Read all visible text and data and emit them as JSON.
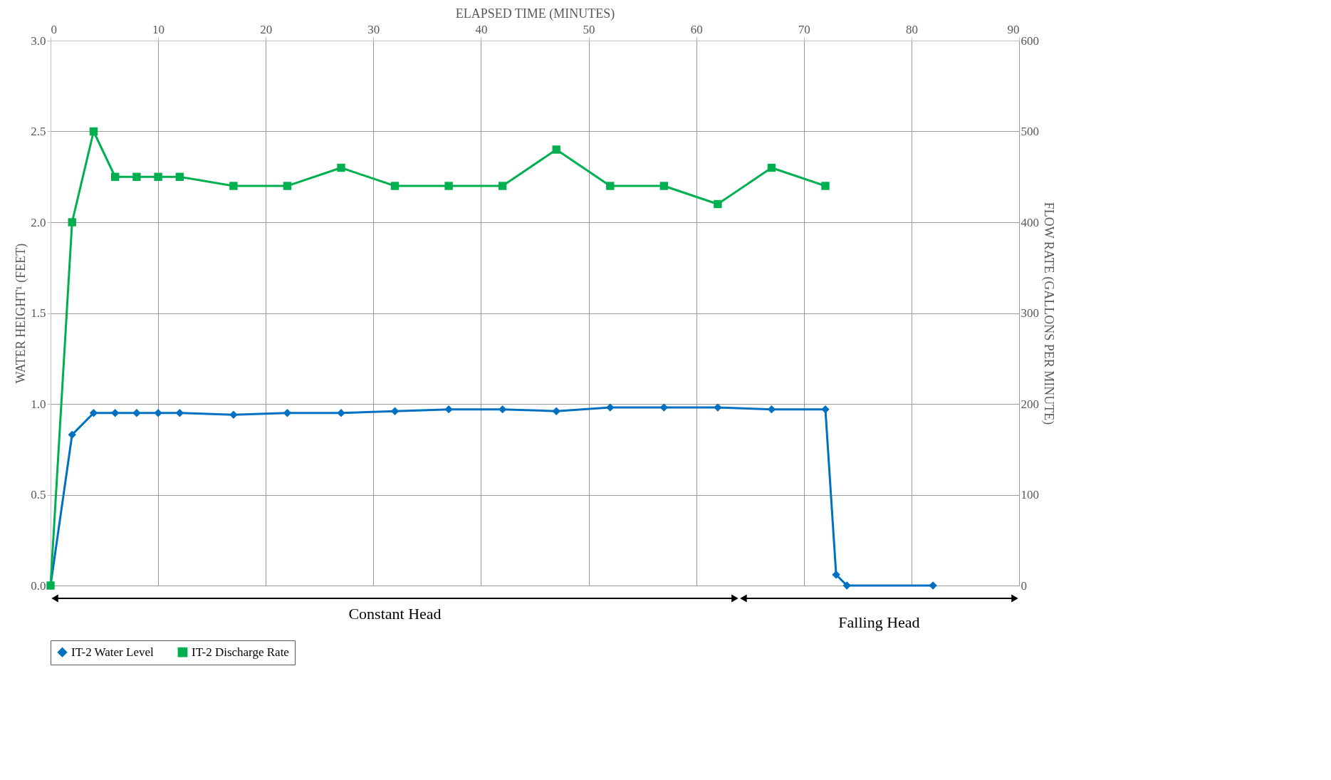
{
  "chart_data": {
    "type": "line",
    "xlabel": "ELAPSED TIME (MINUTES)",
    "ylabel": "WATER HEIGHT¹ (FEET)",
    "y2label": "FLOW RATE (GALLONS PER MINUTE)",
    "xlim": [
      0,
      90
    ],
    "xticks": [
      0,
      10,
      20,
      30,
      40,
      50,
      60,
      70,
      80,
      90
    ],
    "ylim": [
      0,
      3
    ],
    "yticks": [
      {
        "value": 0,
        "label": "0.0"
      },
      {
        "value": 0.5,
        "label": "0.5"
      },
      {
        "value": 1,
        "label": "1.0"
      },
      {
        "value": 1.5,
        "label": "1.5"
      },
      {
        "value": 2,
        "label": "2.0"
      },
      {
        "value": 2.5,
        "label": "2.5"
      },
      {
        "value": 3,
        "label": "3.0"
      }
    ],
    "y2lim": [
      0,
      600
    ],
    "y2ticks": [
      0,
      100,
      200,
      300,
      400,
      500,
      600
    ],
    "grid": true,
    "legend": "bottom",
    "line_style": "solid",
    "series": [
      {
        "name": "IT-2 Water Level",
        "color": "#0070c0",
        "marker": "diamond",
        "axis": "y",
        "x": [
          0,
          2,
          4,
          6,
          8,
          10,
          12,
          17,
          22,
          27,
          32,
          37,
          42,
          47,
          52,
          57,
          62,
          67,
          72,
          73,
          74,
          82
        ],
        "values": [
          0,
          0.83,
          0.95,
          0.95,
          0.95,
          0.95,
          0.95,
          0.94,
          0.95,
          0.95,
          0.96,
          0.97,
          0.97,
          0.96,
          0.98,
          0.98,
          0.98,
          0.97,
          0.97,
          0.06,
          0,
          0
        ]
      },
      {
        "name": "IT-2 Discharge Rate",
        "color": "#00b050",
        "marker": "square",
        "axis": "y2",
        "x": [
          0,
          2,
          4,
          6,
          8,
          10,
          12,
          17,
          22,
          27,
          32,
          37,
          42,
          47,
          52,
          57,
          62,
          67,
          72
        ],
        "values": [
          0,
          400,
          500,
          450,
          450,
          450,
          450,
          440,
          440,
          460,
          440,
          440,
          440,
          480,
          440,
          440,
          420,
          460,
          440
        ]
      }
    ],
    "annotations": [
      "Constant Head",
      "Falling Head"
    ]
  }
}
